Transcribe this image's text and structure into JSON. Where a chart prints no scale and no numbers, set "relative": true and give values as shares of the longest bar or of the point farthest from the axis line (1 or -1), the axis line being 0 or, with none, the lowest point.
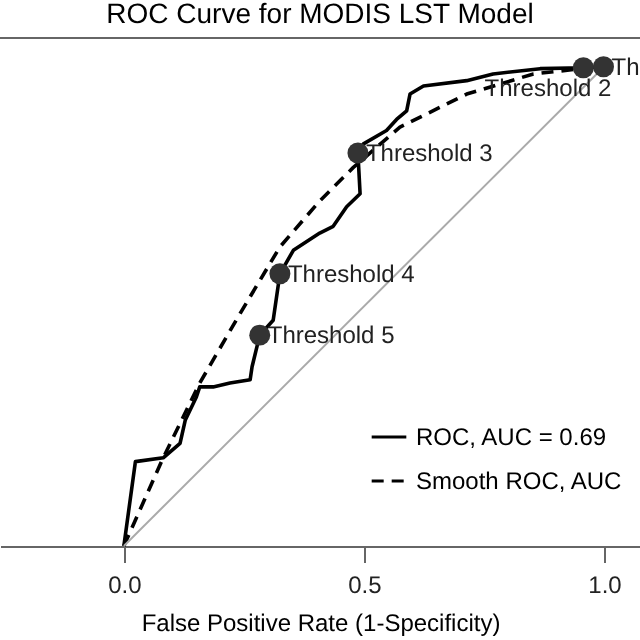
{
  "chart_data": {
    "type": "line",
    "title": "ROC Curve for MODIS LST Model",
    "xlabel": "False Positive Rate (1-Specificity)",
    "relative": true,
    "xlim": [
      -0.258,
      1.075
    ],
    "xticks": [
      {
        "value": 0,
        "label": "0.0"
      },
      {
        "value": 0.5,
        "label": "0.5"
      },
      {
        "value": 1,
        "label": "1.0"
      }
    ],
    "tick_labels": "x",
    "grid": false,
    "legend": "bottom right",
    "series": [
      {
        "name": "ROC, AUC = 0.69",
        "type": "line",
        "color": "#000000",
        "line_style": "solid",
        "marker": "none",
        "x": [
          0,
          0.024,
          0.082,
          0.117,
          0.128,
          0.151,
          0.158,
          0.186,
          0.221,
          0.263,
          0.267,
          0.283,
          0.311,
          0.325,
          0.353,
          0.408,
          0.436,
          0.464,
          0.492,
          0.4875,
          0.499,
          0.547,
          0.568,
          0.589,
          0.596,
          0.624,
          0.714,
          0.769,
          0.867,
          0.957,
          0.999,
          1.0
        ],
        "values": [
          0,
          0.176,
          0.184,
          0.214,
          0.263,
          0.311,
          0.332,
          0.332,
          0.34,
          0.347,
          0.374,
          0.44,
          0.471,
          0.568,
          0.617,
          0.653,
          0.667,
          0.708,
          0.735,
          0.82,
          0.839,
          0.867,
          0.89,
          0.908,
          0.943,
          0.96,
          0.971,
          0.985,
          0.996,
          0.998,
          1.0,
          1.0
        ]
      },
      {
        "name": "Smooth ROC, AUC",
        "type": "line",
        "color": "#000000",
        "line_style": "dashed",
        "marker": "none",
        "x": [
          0,
          0.08,
          0.158,
          0.242,
          0.325,
          0.408,
          0.478,
          0.575,
          0.714,
          0.853,
          0.99
        ],
        "values": [
          0,
          0.18,
          0.34,
          0.485,
          0.624,
          0.72,
          0.79,
          0.874,
          0.943,
          0.985,
          1.0
        ]
      },
      {
        "type": "line",
        "color": "#aaaaaa",
        "line_style": "solid",
        "marker": "none",
        "x": [
          0,
          1
        ],
        "values": [
          0,
          1
        ]
      },
      {
        "type": "scatter",
        "color": "#333333",
        "marker": "circle",
        "x": [
          0.957,
          0.999,
          0.4875,
          0.325,
          0.283
        ],
        "values": [
          0.998,
          1.0,
          0.82,
          0.568,
          0.44
        ]
      }
    ],
    "annotations": [
      {
        "text": "Threshold 2",
        "x": 0.957,
        "y": 0.998
      },
      {
        "text": "Th",
        "x": 0.999,
        "y": 1.0
      },
      {
        "text": "Threshold 3",
        "x": 0.4875,
        "y": 0.82
      },
      {
        "text": "Threshold 4",
        "x": 0.325,
        "y": 0.568
      },
      {
        "text": "Threshold 5",
        "x": 0.283,
        "y": 0.44
      }
    ]
  }
}
